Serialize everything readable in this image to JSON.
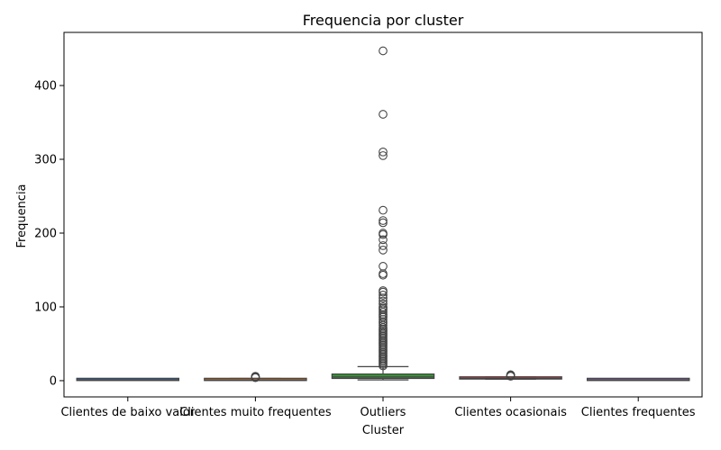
{
  "chart_data": {
    "type": "box",
    "title": "Frequencia por cluster",
    "xlabel": "Cluster",
    "ylabel": "Frequencia",
    "ylim": [
      -22,
      472
    ],
    "yticks": [
      0,
      100,
      200,
      300,
      400
    ],
    "grid": false,
    "categories": [
      "Clientes de baixo valor",
      "Clientes muito frequentes",
      "Outliers",
      "Clientes ocasionais",
      "Clientes frequentes"
    ],
    "series": [
      {
        "stats": [
          {
            "whisker_low": 1,
            "q1": 1,
            "median": 1,
            "q3": 2,
            "whisker_high": 2,
            "outliers": []
          },
          {
            "whisker_low": 1,
            "q1": 1,
            "median": 1,
            "q3": 2,
            "whisker_high": 3,
            "outliers": [
              4,
              4.5,
              5,
              5.5,
              6
            ]
          },
          {
            "whisker_low": 1,
            "q1": 3,
            "median": 5,
            "q3": 9,
            "whisker_high": 19,
            "outliers": [
              20,
              22,
              24,
              26,
              28,
              30,
              32,
              34,
              36,
              38,
              40,
              42,
              44,
              46,
              48,
              50,
              52,
              54,
              56,
              58,
              60,
              62,
              64,
              66,
              68,
              70,
              72,
              75,
              78,
              80,
              83,
              86,
              88,
              90,
              93,
              96,
              98,
              100,
              104,
              108,
              112,
              116,
              120,
              122,
              143,
              145,
              155,
              177,
              183,
              191,
              198,
              200,
              214,
              217,
              231,
              305,
              310,
              361,
              447
            ]
          },
          {
            "whisker_low": 2,
            "q1": 2.5,
            "median": 3,
            "q3": 4,
            "whisker_high": 5,
            "outliers": [
              6,
              6.5,
              7,
              7.5,
              8
            ]
          },
          {
            "whisker_low": 1,
            "q1": 1,
            "median": 1,
            "q3": 2,
            "whisker_high": 2,
            "outliers": []
          }
        ],
        "colors": [
          "#3a6fb0",
          "#e07b2a",
          "#3a923a",
          "#c03d3e",
          "#8c6bb1"
        ]
      }
    ]
  }
}
